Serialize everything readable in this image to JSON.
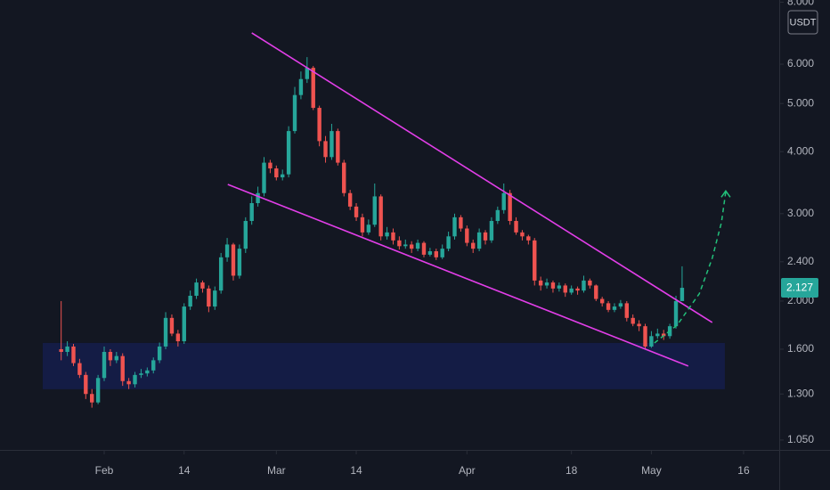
{
  "chart_data": {
    "type": "candlestick",
    "currency": "USDT",
    "last_price": 2.127,
    "log_scale": true,
    "up_color": "#26a69a",
    "down_color": "#ef5350",
    "xlim": [
      14.05,
      140.8
    ],
    "ylim": [
      1.003,
      8.08
    ],
    "xticks": [
      {
        "value": 31,
        "label": "Feb"
      },
      {
        "value": 44,
        "label": "14"
      },
      {
        "value": 59,
        "label": "Mar"
      },
      {
        "value": 72,
        "label": "14"
      },
      {
        "value": 90,
        "label": "Apr"
      },
      {
        "value": 107,
        "label": "18"
      },
      {
        "value": 120,
        "label": "May"
      },
      {
        "value": 135,
        "label": "16"
      }
    ],
    "yticks": [
      {
        "value": 1.05,
        "label": "1.050"
      },
      {
        "value": 1.3,
        "label": "1.300"
      },
      {
        "value": 1.6,
        "label": "1.600"
      },
      {
        "value": 2,
        "label": "2.000"
      },
      {
        "value": 2.4,
        "label": "2.400"
      },
      {
        "value": 3,
        "label": "3.000"
      },
      {
        "value": 4,
        "label": "4.000"
      },
      {
        "value": 5,
        "label": "5.000"
      },
      {
        "value": 6,
        "label": "6.000"
      },
      {
        "value": 8,
        "label": "8.000"
      }
    ],
    "x": [
      24,
      25,
      26,
      27,
      28,
      29,
      30,
      31,
      32,
      33,
      34,
      35,
      36,
      37,
      38,
      39,
      40,
      41,
      42,
      43,
      44,
      45,
      46,
      47,
      48,
      49,
      50,
      51,
      52,
      53,
      54,
      55,
      56,
      57,
      58,
      59,
      60,
      61,
      62,
      63,
      64,
      65,
      66,
      67,
      68,
      69,
      70,
      71,
      72,
      73,
      74,
      75,
      76,
      77,
      78,
      79,
      80,
      81,
      82,
      83,
      84,
      85,
      86,
      87,
      88,
      89,
      90,
      91,
      92,
      93,
      94,
      95,
      96,
      97,
      98,
      99,
      100,
      101,
      102,
      103,
      104,
      105,
      106,
      107,
      108,
      109,
      110,
      111,
      112,
      113,
      114,
      115,
      116,
      117,
      118,
      119,
      120,
      121,
      122,
      123,
      124,
      125
    ],
    "open": [
      1.6,
      1.58,
      1.62,
      1.5,
      1.42,
      1.3,
      1.25,
      1.4,
      1.58,
      1.52,
      1.55,
      1.38,
      1.36,
      1.42,
      1.43,
      1.45,
      1.52,
      1.62,
      1.85,
      1.72,
      1.66,
      1.95,
      2.05,
      2.18,
      2.12,
      1.95,
      2.1,
      2.45,
      2.6,
      2.25,
      2.55,
      2.9,
      3.15,
      3.3,
      3.8,
      3.7,
      3.55,
      3.6,
      4.4,
      5.2,
      5.6,
      5.9,
      4.9,
      4.2,
      3.9,
      4.4,
      3.8,
      3.3,
      3.1,
      2.95,
      2.75,
      2.85,
      3.25,
      2.7,
      2.75,
      2.65,
      2.58,
      2.6,
      2.55,
      2.62,
      2.48,
      2.52,
      2.45,
      2.55,
      2.7,
      2.95,
      2.8,
      2.62,
      2.55,
      2.75,
      2.65,
      2.9,
      3.05,
      3.3,
      2.9,
      2.75,
      2.7,
      2.65,
      2.2,
      2.15,
      2.18,
      2.12,
      2.15,
      2.08,
      2.12,
      2.1,
      2.2,
      2.15,
      2.02,
      1.98,
      1.92,
      1.95,
      1.98,
      1.85,
      1.8,
      1.78,
      1.62,
      1.7,
      1.72,
      1.7,
      1.78,
      2.0
    ],
    "high": [
      2.0,
      1.66,
      1.64,
      1.53,
      1.44,
      1.33,
      1.42,
      1.62,
      1.6,
      1.58,
      1.57,
      1.4,
      1.44,
      1.46,
      1.47,
      1.54,
      1.65,
      1.9,
      1.88,
      1.75,
      1.98,
      2.1,
      2.22,
      2.2,
      2.15,
      2.14,
      2.5,
      2.68,
      2.62,
      2.6,
      2.95,
      3.25,
      3.4,
      3.9,
      3.85,
      3.75,
      3.68,
      4.5,
      5.4,
      5.8,
      6.2,
      5.95,
      4.95,
      4.3,
      4.55,
      4.45,
      3.85,
      3.35,
      3.15,
      3.0,
      2.92,
      3.45,
      3.28,
      2.82,
      2.8,
      2.7,
      2.66,
      2.64,
      2.66,
      2.64,
      2.56,
      2.55,
      2.6,
      2.76,
      3.0,
      2.98,
      2.84,
      2.66,
      2.8,
      2.78,
      2.95,
      3.1,
      3.45,
      3.35,
      2.95,
      2.78,
      2.72,
      2.68,
      2.24,
      2.22,
      2.2,
      2.18,
      2.17,
      2.15,
      2.14,
      2.25,
      2.22,
      2.16,
      2.04,
      2.0,
      1.98,
      2.01,
      2.0,
      1.88,
      1.83,
      1.8,
      1.74,
      1.76,
      1.75,
      1.8,
      2.05,
      2.35
    ],
    "low": [
      1.52,
      1.55,
      1.48,
      1.4,
      1.27,
      1.22,
      1.24,
      1.38,
      1.48,
      1.5,
      1.35,
      1.33,
      1.34,
      1.4,
      1.41,
      1.43,
      1.5,
      1.6,
      1.7,
      1.62,
      1.64,
      1.92,
      2.02,
      2.08,
      1.9,
      1.92,
      2.07,
      2.4,
      2.2,
      2.22,
      2.5,
      2.85,
      3.1,
      3.25,
      3.62,
      3.5,
      3.5,
      3.55,
      4.35,
      5.1,
      5.5,
      4.85,
      4.1,
      3.8,
      3.85,
      3.75,
      3.25,
      3.05,
      2.9,
      2.7,
      2.72,
      2.82,
      2.65,
      2.66,
      2.6,
      2.54,
      2.55,
      2.5,
      2.52,
      2.45,
      2.46,
      2.42,
      2.43,
      2.52,
      2.66,
      2.76,
      2.58,
      2.5,
      2.52,
      2.6,
      2.62,
      2.86,
      3.0,
      2.85,
      2.72,
      2.65,
      2.6,
      2.15,
      2.1,
      2.12,
      2.08,
      2.09,
      2.04,
      2.06,
      2.06,
      2.08,
      2.12,
      2.0,
      1.95,
      1.9,
      1.9,
      1.93,
      1.82,
      1.78,
      1.74,
      1.6,
      1.61,
      1.68,
      1.67,
      1.68,
      1.76,
      2.05
    ],
    "close": [
      1.58,
      1.62,
      1.5,
      1.42,
      1.3,
      1.25,
      1.4,
      1.58,
      1.52,
      1.55,
      1.38,
      1.36,
      1.42,
      1.43,
      1.45,
      1.52,
      1.62,
      1.85,
      1.72,
      1.66,
      1.95,
      2.05,
      2.18,
      2.12,
      1.95,
      2.1,
      2.45,
      2.6,
      2.25,
      2.55,
      2.9,
      3.15,
      3.3,
      3.8,
      3.7,
      3.55,
      3.6,
      4.4,
      5.2,
      5.6,
      5.9,
      4.9,
      4.2,
      3.9,
      4.4,
      3.8,
      3.3,
      3.1,
      2.95,
      2.75,
      2.85,
      3.25,
      2.7,
      2.75,
      2.65,
      2.58,
      2.6,
      2.55,
      2.62,
      2.48,
      2.52,
      2.45,
      2.55,
      2.7,
      2.95,
      2.8,
      2.62,
      2.55,
      2.75,
      2.65,
      2.9,
      3.05,
      3.3,
      2.9,
      2.75,
      2.7,
      2.65,
      2.2,
      2.15,
      2.18,
      2.12,
      2.15,
      2.08,
      2.12,
      2.1,
      2.2,
      2.15,
      2.02,
      1.98,
      1.92,
      1.95,
      1.98,
      1.85,
      1.8,
      1.78,
      1.62,
      1.7,
      1.72,
      1.7,
      1.78,
      2.0,
      2.127
    ],
    "zone": {
      "color": "#141c45",
      "x": [
        21.0,
        131.95
      ],
      "y": [
        1.329,
        1.647
      ]
    },
    "trendlines": [
      {
        "color": "#e23ee8",
        "x": [
          55.0,
          129.9
        ],
        "y": [
          6.935,
          1.811
        ]
      },
      {
        "color": "#e23ee8",
        "x": [
          51.1,
          126.0
        ],
        "y": [
          3.435,
          1.48
        ]
      }
    ],
    "forecast": {
      "color": "#22c07a",
      "x": [
        120.5,
        124.2,
        127.8,
        129.9,
        131.4,
        132.1
      ],
      "y": [
        1.647,
        1.79,
        2.07,
        2.44,
        2.88,
        3.32
      ]
    }
  }
}
